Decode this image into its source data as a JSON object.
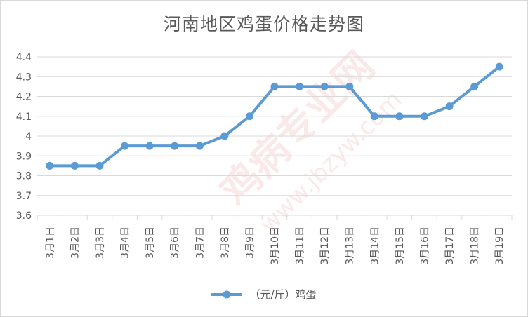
{
  "chart_data": {
    "type": "line",
    "title": "河南地区鸡蛋价格走势图",
    "categories": [
      "3月1日",
      "3月2日",
      "3月3日",
      "3月4日",
      "3月5日",
      "3月6日",
      "3月7日",
      "3月8日",
      "3月9日",
      "3月10日",
      "3月11日",
      "3月12日",
      "3月13日",
      "3月14日",
      "3月15日",
      "3月16日",
      "3月17日",
      "3月18日",
      "3月19日"
    ],
    "series": [
      {
        "name": "（元/斤）鸡蛋",
        "values": [
          3.85,
          3.85,
          3.85,
          3.95,
          3.95,
          3.95,
          3.95,
          4.0,
          4.1,
          4.25,
          4.25,
          4.25,
          4.25,
          4.1,
          4.1,
          4.1,
          4.15,
          4.25,
          4.35
        ],
        "color": "#5b9bd5"
      }
    ],
    "y_ticks": [
      "3.6",
      "3.7",
      "3.8",
      "3.9",
      "4",
      "4.1",
      "4.2",
      "4.3",
      "4.4"
    ],
    "ylim": [
      3.6,
      4.4
    ],
    "grid": true,
    "legend_position": "bottom"
  },
  "watermark": {
    "text": "鸡病专业网",
    "url": "www.jbzyw.com"
  }
}
